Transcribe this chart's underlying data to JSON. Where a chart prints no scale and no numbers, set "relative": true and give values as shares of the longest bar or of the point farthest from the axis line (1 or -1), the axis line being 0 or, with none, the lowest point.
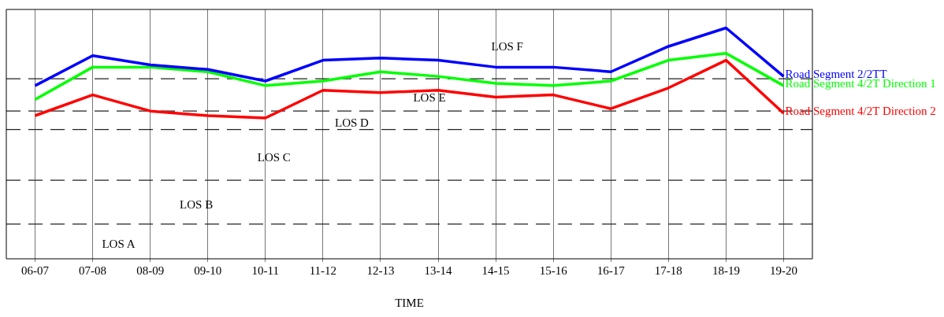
{
  "chart_data": {
    "type": "line",
    "relative": true,
    "xlabel": "TIME",
    "grid": "x",
    "legend": false,
    "marker": "none",
    "line_style": "solid",
    "categories": [
      "06-07",
      "07-08",
      "08-09",
      "09-10",
      "10-11",
      "11-12",
      "12-13",
      "13-14",
      "14-15",
      "15-16",
      "16-17",
      "17-18",
      "18-19",
      "19-20"
    ],
    "series": [
      {
        "name": "Road Segment 2/2TT",
        "color": "#0000ff",
        "values": [
          0.75,
          0.88,
          0.84,
          0.82,
          0.77,
          0.86,
          0.87,
          0.86,
          0.83,
          0.83,
          0.81,
          0.92,
          1,
          0.79
        ]
      },
      {
        "name": "Road Segment 4/2T Direction 1",
        "color": "#00ff00",
        "values": [
          0.69,
          0.83,
          0.83,
          0.81,
          0.75,
          0.77,
          0.81,
          0.79,
          0.76,
          0.75,
          0.77,
          0.86,
          0.89,
          0.75
        ]
      },
      {
        "name": "Road Segment 4/2T Direction 2",
        "color": "#ff0000",
        "values": [
          0.62,
          0.71,
          0.64,
          0.62,
          0.61,
          0.73,
          0.72,
          0.73,
          0.7,
          0.71,
          0.65,
          0.74,
          0.86,
          0.63
        ]
      }
    ],
    "ref_lines": [
      {
        "axis": "y",
        "value": 0.15,
        "line_style": "dashed"
      },
      {
        "axis": "y",
        "value": 0.34,
        "line_style": "dashed"
      },
      {
        "axis": "y",
        "value": 0.56,
        "line_style": "dashed"
      },
      {
        "axis": "y",
        "value": 0.64,
        "line_style": "dashed"
      },
      {
        "axis": "y",
        "value": 0.78,
        "line_style": "dashed"
      }
    ],
    "annotations": [
      "LOS A",
      "LOS B",
      "LOS C",
      "LOS D",
      "LOS E",
      "LOS F"
    ]
  }
}
